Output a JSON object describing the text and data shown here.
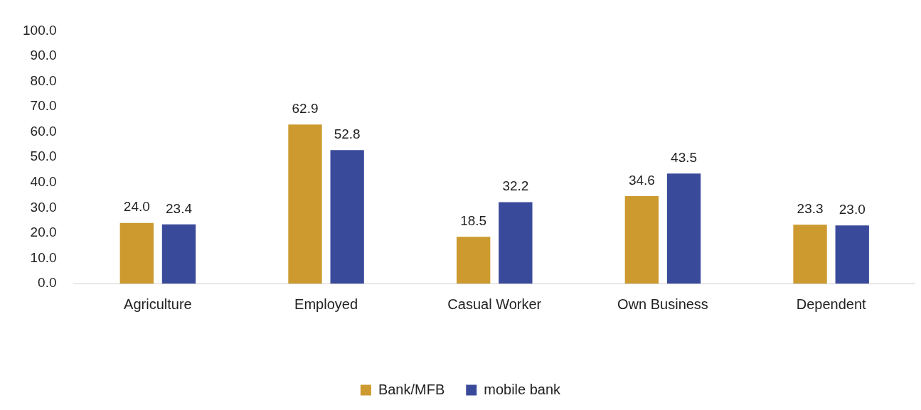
{
  "chart_data": {
    "type": "bar",
    "categories": [
      "Agriculture",
      "Employed",
      "Casual Worker",
      "Own Business",
      "Dependent"
    ],
    "series": [
      {
        "name": "Bank/MFB",
        "color": "#cc9a2e",
        "values": [
          24.0,
          62.9,
          18.5,
          34.6,
          23.3
        ],
        "value_labels": [
          "24.0",
          "62.9",
          "18.5",
          "34.6",
          "23.3"
        ]
      },
      {
        "name": "mobile bank",
        "color": "#3a4a9b",
        "values": [
          23.4,
          52.8,
          32.2,
          43.5,
          23.0
        ],
        "value_labels": [
          "23.4",
          "52.8",
          "32.2",
          "43.5",
          "23.0"
        ]
      }
    ],
    "ylim": [
      0,
      100
    ],
    "yticks": [
      {
        "value": 0,
        "label": "0.0"
      },
      {
        "value": 10,
        "label": "10.0"
      },
      {
        "value": 20,
        "label": "20.0"
      },
      {
        "value": 30,
        "label": "30.0"
      },
      {
        "value": 40,
        "label": "40.0"
      },
      {
        "value": 50,
        "label": "50.0"
      },
      {
        "value": 60,
        "label": "60.0"
      },
      {
        "value": 70,
        "label": "70.0"
      },
      {
        "value": 80,
        "label": "80.0"
      },
      {
        "value": 90,
        "label": "90.0"
      },
      {
        "value": 100,
        "label": "100.0"
      }
    ],
    "grid": false,
    "legend": "bottom"
  }
}
